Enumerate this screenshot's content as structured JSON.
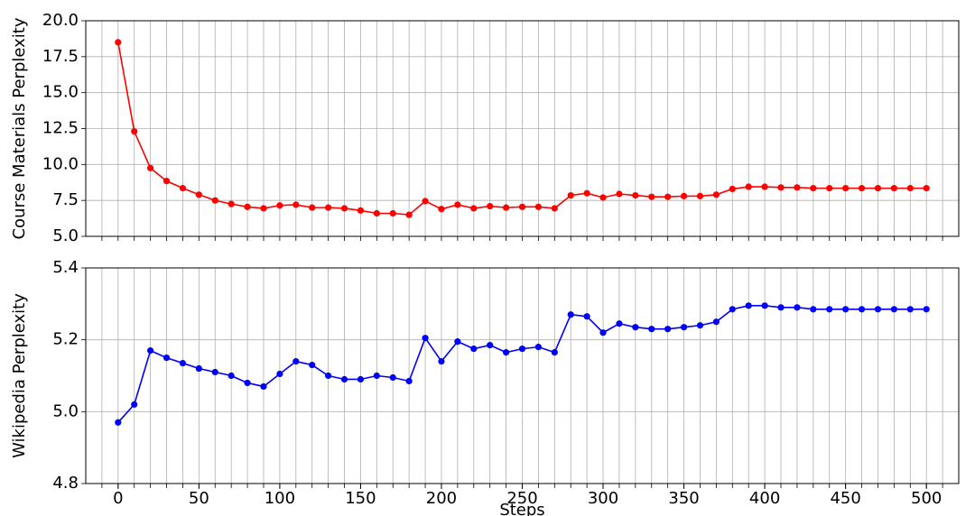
{
  "chart_data": [
    {
      "type": "line",
      "ylabel": "Course Materials Perplexity",
      "x": [
        0,
        10,
        20,
        30,
        40,
        50,
        60,
        70,
        80,
        90,
        100,
        110,
        120,
        130,
        140,
        150,
        160,
        170,
        180,
        190,
        200,
        210,
        220,
        230,
        240,
        250,
        260,
        270,
        280,
        290,
        300,
        310,
        320,
        330,
        340,
        350,
        360,
        370,
        380,
        390,
        400,
        410,
        420,
        430,
        440,
        450,
        460,
        470,
        480,
        490,
        500
      ],
      "series": [
        {
          "color": "#ff0000",
          "values": [
            18.5,
            12.3,
            9.75,
            8.85,
            8.35,
            7.9,
            7.5,
            7.25,
            7.05,
            6.95,
            7.15,
            7.2,
            7.0,
            7.0,
            6.95,
            6.8,
            6.6,
            6.6,
            6.5,
            7.45,
            6.9,
            7.2,
            6.95,
            7.1,
            7.0,
            7.05,
            7.05,
            6.95,
            7.85,
            8.0,
            7.7,
            7.95,
            7.85,
            7.75,
            7.75,
            7.8,
            7.8,
            7.9,
            8.3,
            8.45,
            8.45,
            8.4,
            8.4,
            8.35,
            8.35,
            8.35,
            8.35,
            8.35,
            8.35,
            8.35,
            8.35
          ]
        }
      ],
      "xlim": [
        -20,
        520
      ],
      "xgrid": [
        -10,
        0,
        10,
        20,
        30,
        40,
        50,
        60,
        70,
        80,
        90,
        100,
        110,
        120,
        130,
        140,
        150,
        160,
        170,
        180,
        190,
        200,
        210,
        220,
        230,
        240,
        250,
        260,
        270,
        280,
        290,
        300,
        310,
        320,
        330,
        340,
        350,
        360,
        370,
        380,
        390,
        400,
        410,
        420,
        430,
        440,
        450,
        460,
        470,
        480,
        490,
        500,
        510
      ],
      "ylim": [
        5,
        20
      ],
      "yticks": [
        {
          "value": 5,
          "label": "5.0"
        },
        7.5,
        {
          "value": 10,
          "label": "10.0"
        },
        12.5,
        {
          "value": 15,
          "label": "15.0"
        },
        17.5,
        {
          "value": 20,
          "label": "20.0"
        }
      ],
      "grid": true
    },
    {
      "type": "line",
      "ylabel": "Wikipedia Perplexity",
      "xlabel": "Steps",
      "x": [
        0,
        10,
        20,
        30,
        40,
        50,
        60,
        70,
        80,
        90,
        100,
        110,
        120,
        130,
        140,
        150,
        160,
        170,
        180,
        190,
        200,
        210,
        220,
        230,
        240,
        250,
        260,
        270,
        280,
        290,
        300,
        310,
        320,
        330,
        340,
        350,
        360,
        370,
        380,
        390,
        400,
        410,
        420,
        430,
        440,
        450,
        460,
        470,
        480,
        490,
        500
      ],
      "series": [
        {
          "color": "#0000ff",
          "values": [
            4.97,
            5.02,
            5.17,
            5.15,
            5.135,
            5.12,
            5.11,
            5.1,
            5.08,
            5.07,
            5.105,
            5.14,
            5.13,
            5.1,
            5.09,
            5.09,
            5.1,
            5.095,
            5.085,
            5.205,
            5.14,
            5.195,
            5.175,
            5.185,
            5.165,
            5.175,
            5.18,
            5.165,
            5.27,
            5.265,
            5.22,
            5.245,
            5.235,
            5.23,
            5.23,
            5.235,
            5.24,
            5.25,
            5.285,
            5.295,
            5.295,
            5.29,
            5.29,
            5.285,
            5.285,
            5.285,
            5.285,
            5.285,
            5.285,
            5.285,
            5.285
          ]
        }
      ],
      "xlim": [
        -20,
        520
      ],
      "xticks": [
        0,
        50,
        100,
        150,
        200,
        250,
        300,
        350,
        400,
        450,
        500
      ],
      "xgrid": [
        -10,
        0,
        10,
        20,
        30,
        40,
        50,
        60,
        70,
        80,
        90,
        100,
        110,
        120,
        130,
        140,
        150,
        160,
        170,
        180,
        190,
        200,
        210,
        220,
        230,
        240,
        250,
        260,
        270,
        280,
        290,
        300,
        310,
        320,
        330,
        340,
        350,
        360,
        370,
        380,
        390,
        400,
        410,
        420,
        430,
        440,
        450,
        460,
        470,
        480,
        490,
        500,
        510
      ],
      "ylim": [
        4.8,
        5.4
      ],
      "yticks": [
        4.8,
        {
          "value": 5,
          "label": "5.0"
        },
        5.2,
        5.4
      ],
      "grid": true
    }
  ]
}
